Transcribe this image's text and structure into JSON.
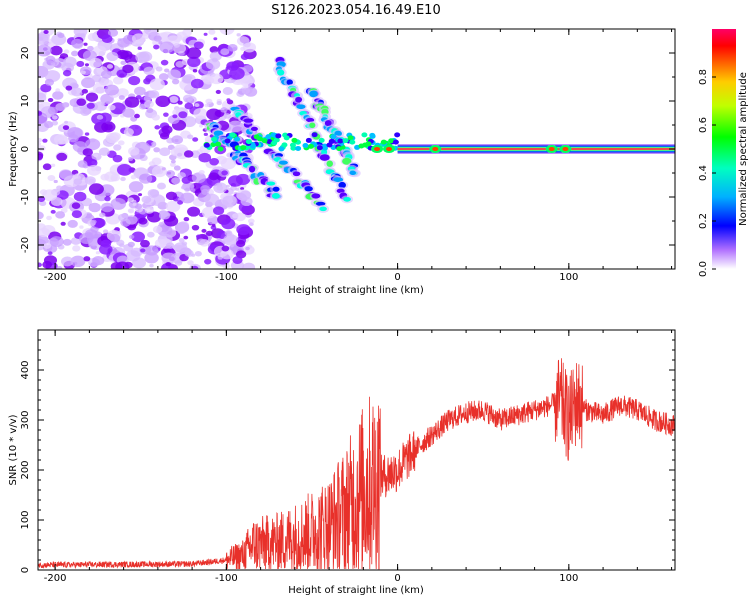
{
  "figure_title": "S126.2023.054.16.49.E10",
  "chart_data": [
    {
      "type": "heatmap",
      "title": "",
      "xlabel": "Height of straight line (km)",
      "ylabel": "Frequency (Hz)",
      "xlim": [
        -210,
        162
      ],
      "ylim": [
        -25,
        25
      ],
      "xticks": [
        "-200",
        "-100",
        "0",
        "100"
      ],
      "yticks": [
        "20",
        "10",
        "0",
        "-10",
        "-20"
      ],
      "colorbar": {
        "label": "Normalized spectral amplitude",
        "range": [
          0,
          1
        ],
        "ticks": [
          "0.0",
          "0.2",
          "0.4",
          "0.6",
          "0.8"
        ],
        "colormap": [
          "#ffffff",
          "#8a00ff",
          "#0000ff",
          "#00ffff",
          "#00ff00",
          "#ffff00",
          "#ff8000",
          "#ff0000",
          "#ff0066"
        ]
      },
      "features": {
        "noise_region_x": [
          -210,
          -95
        ],
        "carrier_line_freq_hz": 0,
        "carrier_line_x": [
          0,
          162
        ],
        "diagonal_streaks": [
          {
            "x": [
              -110,
              -70
            ],
            "y": [
              5,
              -10
            ]
          },
          {
            "x": [
              -95,
              -45
            ],
            "y": [
              8,
              -12
            ]
          },
          {
            "x": [
              -70,
              -30
            ],
            "y": [
              18,
              -10
            ]
          },
          {
            "x": [
              -50,
              -25
            ],
            "y": [
              12,
              -5
            ]
          }
        ]
      }
    },
    {
      "type": "line",
      "title": "",
      "xlabel": "Height of straight line (km)",
      "ylabel": "SNR (10 * v/v)",
      "xlim": [
        -210,
        162
      ],
      "ylim": [
        0,
        480
      ],
      "xticks": [
        "-200",
        "-100",
        "0",
        "100"
      ],
      "yticks": [
        "0",
        "100",
        "200",
        "300",
        "400"
      ],
      "color": "#e8302a",
      "envelope": {
        "x": [
          -210,
          -120,
          -100,
          -90,
          -85,
          -70,
          -55,
          -40,
          -30,
          -20,
          -10,
          0,
          10,
          20,
          30,
          40,
          50,
          60,
          70,
          80,
          90,
          95,
          100,
          105,
          110,
          120,
          130,
          140,
          150,
          160
        ],
        "y": [
          10,
          12,
          20,
          30,
          50,
          55,
          70,
          90,
          120,
          160,
          185,
          200,
          240,
          270,
          300,
          315,
          320,
          300,
          310,
          320,
          330,
          340,
          300,
          340,
          320,
          310,
          330,
          320,
          300,
          290
        ]
      }
    }
  ]
}
